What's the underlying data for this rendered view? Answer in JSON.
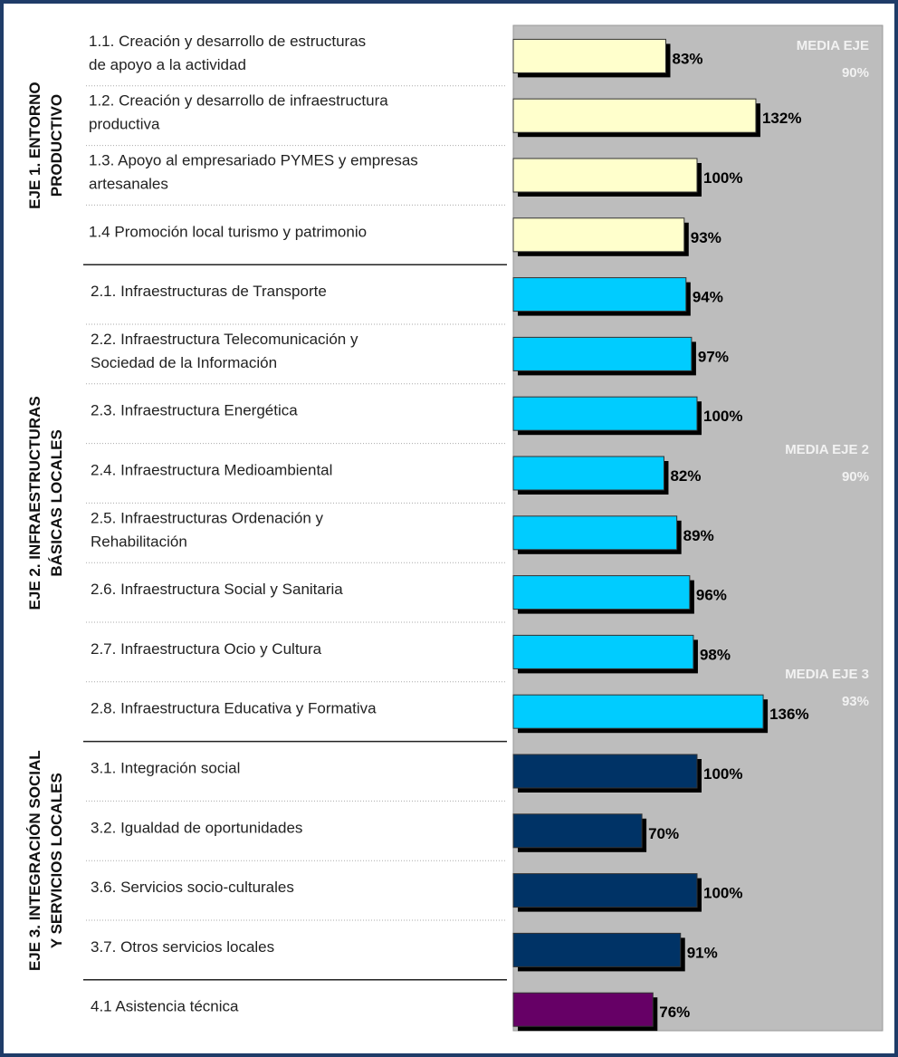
{
  "chart_data": {
    "type": "bar",
    "orientation": "horizontal",
    "xlim": [
      0,
      200
    ],
    "series": [
      {
        "name": "EJE 1. ENTORNO\nPRODUCTIVO",
        "color": "#ffffcc",
        "categories": [
          "1.1. Creación y desarrollo de estructuras\nde apoyo a la actividad",
          "1.2. Creación y desarrollo de  infraestructura\nproductiva",
          "1.3. Apoyo al empresariado PYMES y empresas\nartesanales",
          "1.4 Promoción local turismo y patrimonio"
        ],
        "values": [
          83,
          132,
          100,
          93
        ],
        "value_labels": [
          "83%",
          "132%",
          "100%",
          "93%"
        ],
        "annotation": "MEDIA EJE\n90%"
      },
      {
        "name": "EJE 2. INFRAESTRUCTURAS\nBÁSICAS LOCALES",
        "color": "#00ccff",
        "categories": [
          "2.1. Infraestructuras de Transporte",
          "2.2. Infraestructura Telecomunicación y\nSociedad de la Información",
          "2.3. Infraestructura Energética",
          "2.4. Infraestructura Medioambiental",
          "2.5. Infraestructuras Ordenación y\nRehabilitación",
          "2.6. Infraestructura Social y Sanitaria",
          "2.7.  Infraestructura Ocio y Cultura",
          "2.8.  Infraestructura Educativa y Formativa"
        ],
        "values": [
          94,
          97,
          100,
          82,
          89,
          96,
          98,
          136
        ],
        "value_labels": [
          "94%",
          "97%",
          "100%",
          "82%",
          "89%",
          "96%",
          "98%",
          "136%"
        ],
        "annotation": "MEDIA  EJE 2\n90%"
      },
      {
        "name": "EJE 3. INTEGRACIÓN SOCIAL\nY SERVICIOS LOCALES",
        "color": "#003366",
        "categories": [
          "3.1. Integración social",
          "3.2. Igualdad de oportunidades",
          "3.6. Servicios socio-culturales",
          "3.7. Otros servicios locales"
        ],
        "values": [
          100,
          70,
          100,
          91
        ],
        "value_labels": [
          "100%",
          "70%",
          "100%",
          "91%"
        ],
        "annotation": "MEDIA  EJE 3\n93%"
      },
      {
        "color": "#660066",
        "categories": [
          "4.1 Asistencia técnica"
        ],
        "values": [
          76
        ],
        "value_labels": [
          "76%"
        ]
      }
    ]
  }
}
